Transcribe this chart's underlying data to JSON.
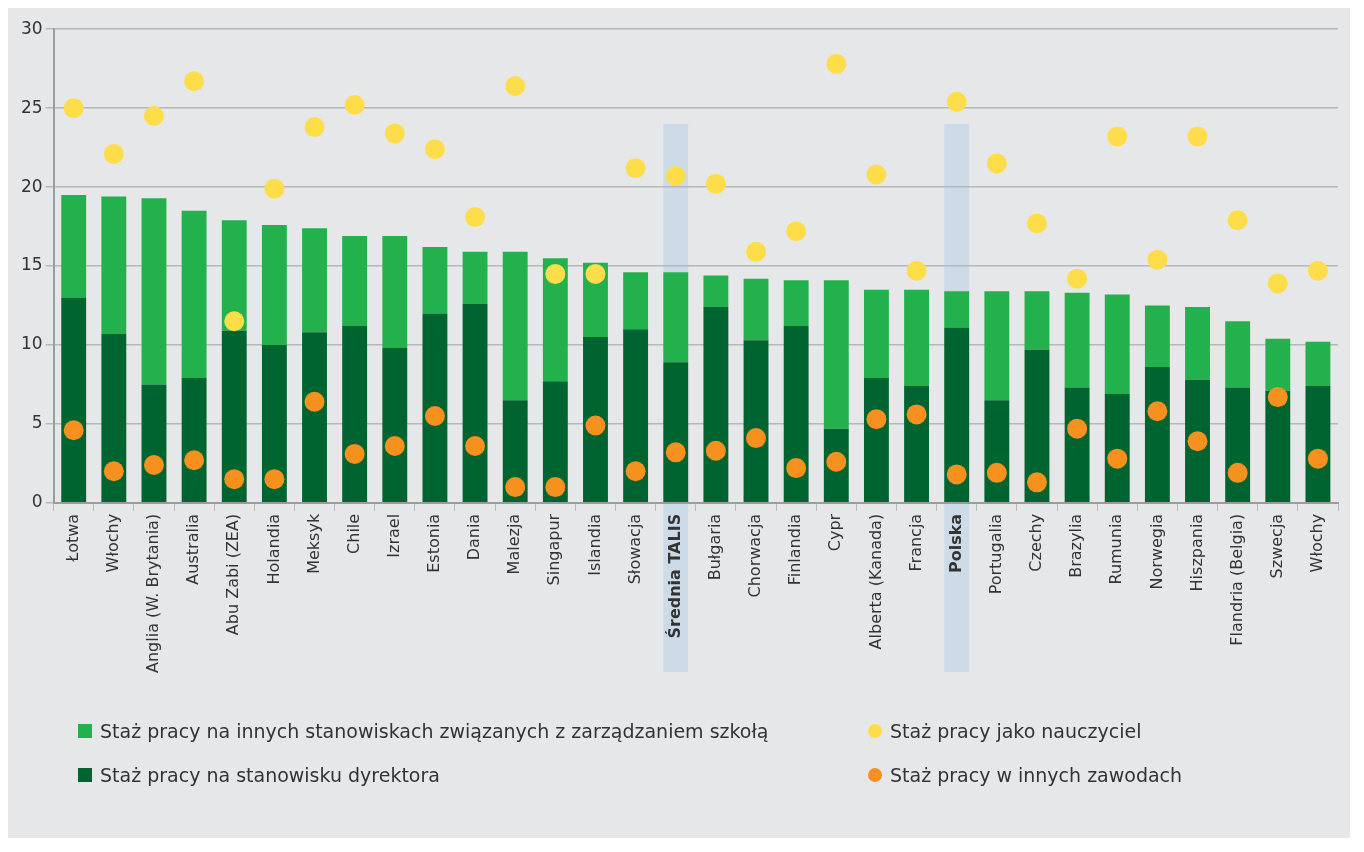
{
  "chart_data": {
    "type": "bar",
    "stacked": true,
    "categories": [
      "Łotwa",
      "Włochy",
      "Anglia (W. Brytania)",
      "Australia",
      "Abu Zabi (ZEA)",
      "Holandia",
      "Meksyk",
      "Chile",
      "Izrael",
      "Estonia",
      "Dania",
      "Malezja",
      "Singapur",
      "Islandia",
      "Słowacja",
      "Średnia TALIS",
      "Bułgaria",
      "Chorwacja",
      "Finlandia",
      "Cypr",
      "Alberta (Kanada)",
      "Francja",
      "Polska",
      "Portugalia",
      "Czechy",
      "Brazylia",
      "Rumunia",
      "Norwegia",
      "Hiszpania",
      "Flandria (Belgia)",
      "Szwecja",
      "Włochy"
    ],
    "series": [
      {
        "name": "Staż pracy na stanowisku dyrektora",
        "color": "#006430",
        "values": [
          13.0,
          10.7,
          7.5,
          7.9,
          10.9,
          10.0,
          10.8,
          11.2,
          9.8,
          12.0,
          12.6,
          6.5,
          7.7,
          10.5,
          11.0,
          8.9,
          12.4,
          10.3,
          11.2,
          4.7,
          7.9,
          7.4,
          11.1,
          6.5,
          9.7,
          7.3,
          6.9,
          8.6,
          7.8,
          7.3,
          7.1,
          7.4
        ]
      },
      {
        "name": "Staż pracy na innych stanowiskach związanych z zarządzaniem szkołą",
        "color": "#23b14d",
        "values": [
          6.5,
          8.7,
          11.8,
          10.6,
          7.0,
          7.6,
          6.6,
          5.7,
          7.1,
          4.2,
          3.3,
          9.4,
          7.8,
          4.7,
          3.6,
          5.7,
          2.0,
          3.9,
          2.9,
          9.4,
          5.6,
          6.1,
          2.3,
          6.9,
          3.7,
          6.0,
          6.3,
          3.9,
          4.6,
          4.2,
          3.3,
          2.8
        ]
      },
      {
        "name": "Staż pracy jako nauczyciel",
        "color": "#fedd4a",
        "type": "scatter",
        "values": [
          25.0,
          22.1,
          24.5,
          26.7,
          11.5,
          19.9,
          23.8,
          25.2,
          23.4,
          22.4,
          18.1,
          26.4,
          14.5,
          14.5,
          21.2,
          20.7,
          20.2,
          15.9,
          17.2,
          27.8,
          20.8,
          14.7,
          25.4,
          21.5,
          17.7,
          14.2,
          23.2,
          15.4,
          23.2,
          17.9,
          13.9,
          14.7
        ]
      },
      {
        "name": "Staż pracy w innych zawodach",
        "color": "#f6901e",
        "type": "scatter",
        "values": [
          4.6,
          2.0,
          2.4,
          2.7,
          1.5,
          1.5,
          6.4,
          3.1,
          3.6,
          5.5,
          3.6,
          1.0,
          1.0,
          4.9,
          2.0,
          3.2,
          3.3,
          4.1,
          2.2,
          2.6,
          5.3,
          5.6,
          1.8,
          1.9,
          1.3,
          4.7,
          2.8,
          5.8,
          3.9,
          1.9,
          6.7,
          2.8
        ]
      }
    ],
    "ylim": [
      0,
      30
    ],
    "yticks": [
      0,
      5,
      10,
      15,
      20,
      25,
      30
    ],
    "grid": "y",
    "marker": "circle",
    "legend": "bottom",
    "bands": [
      {
        "axis": "x",
        "from": "Średnia TALIS",
        "to": "Średnia TALIS",
        "color": "#cddbe8"
      },
      {
        "axis": "x",
        "from": "Polska",
        "to": "Polska",
        "color": "#cddbe8"
      }
    ]
  }
}
